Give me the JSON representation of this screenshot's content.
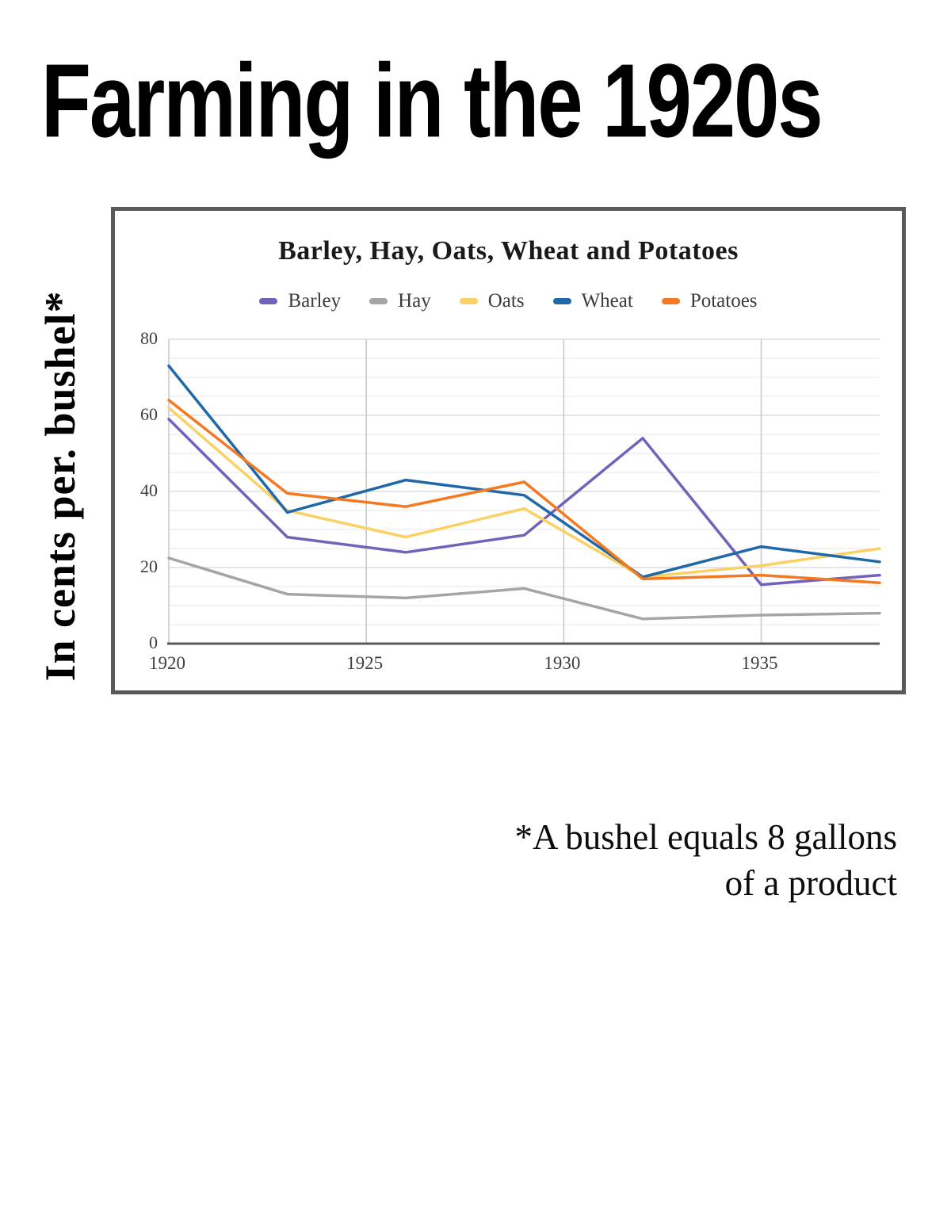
{
  "page": {
    "title": "Farming in the 1920s",
    "y_axis_label": "In cents per. bushel*",
    "footnote_line1": "*A bushel equals 8 gallons",
    "footnote_line2": "of a product"
  },
  "chart_data": {
    "type": "line",
    "title": "Barley, Hay, Oats, Wheat and Potatoes",
    "xlabel": "",
    "ylabel": "In cents per. bushel*",
    "x": [
      1920,
      1923,
      1926,
      1929,
      1932,
      1935,
      1938
    ],
    "series": [
      {
        "name": "Barley",
        "color": "#7362BC",
        "values": [
          59,
          28,
          24,
          28.5,
          54,
          15.5,
          18
        ]
      },
      {
        "name": "Hay",
        "color": "#A5A5A5",
        "values": [
          22.5,
          13,
          12,
          14.5,
          6.5,
          7.5,
          8
        ]
      },
      {
        "name": "Oats",
        "color": "#FBD064",
        "values": [
          62,
          35,
          28,
          35.5,
          17.5,
          20.5,
          25
        ]
      },
      {
        "name": "Wheat",
        "color": "#2068A8",
        "values": [
          73,
          34.5,
          43,
          39,
          17.5,
          25.5,
          21.5
        ]
      },
      {
        "name": "Potatoes",
        "color": "#F47920",
        "values": [
          64,
          39.5,
          36,
          42.5,
          17,
          18,
          16
        ]
      }
    ],
    "xlim": [
      1920,
      1938
    ],
    "ylim": [
      0,
      80
    ],
    "x_ticks": [
      1920,
      1925,
      1930,
      1935
    ],
    "y_ticks": [
      0,
      20,
      40,
      60,
      80
    ],
    "minor_grid_step": 5,
    "grid": true,
    "legend_position": "top"
  },
  "style": {
    "grid_minor_color": "#EAEAEA",
    "grid_major_color": "#D8D8D8",
    "grid_vertical_color": "#C6C6C6",
    "axis_line_color": "#595959",
    "tick_label_color": "#3f3f3f"
  }
}
